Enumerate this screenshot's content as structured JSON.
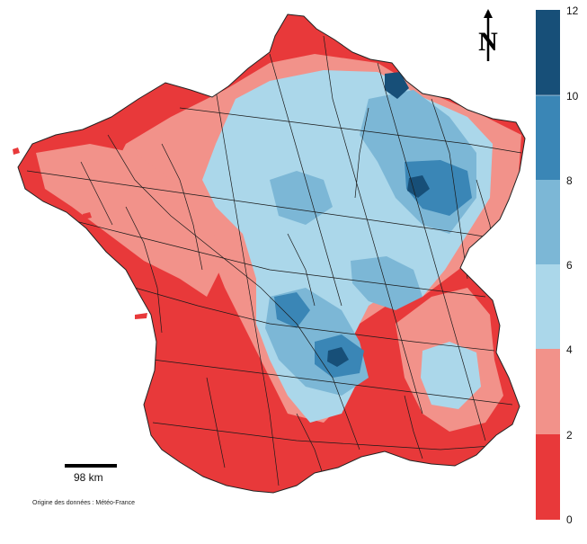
{
  "map": {
    "colors": {
      "band_0_2": "#e8393a",
      "band_2_4": "#f2928a",
      "band_4_6": "#abd7ea",
      "band_6_8": "#7cb7d6",
      "band_8_10": "#3a86b6",
      "band_10_12": "#174f78"
    },
    "north_arrow_label": "N",
    "scale_bar_label": "98 km",
    "credit": "Origine des données : Météo-France"
  },
  "legend": {
    "ticks": [
      "12",
      "10",
      "8",
      "6",
      "4",
      "2",
      "0"
    ],
    "colors": [
      "#174f78",
      "#3a86b6",
      "#7cb7d6",
      "#abd7ea",
      "#f2928a",
      "#e8393a"
    ]
  }
}
